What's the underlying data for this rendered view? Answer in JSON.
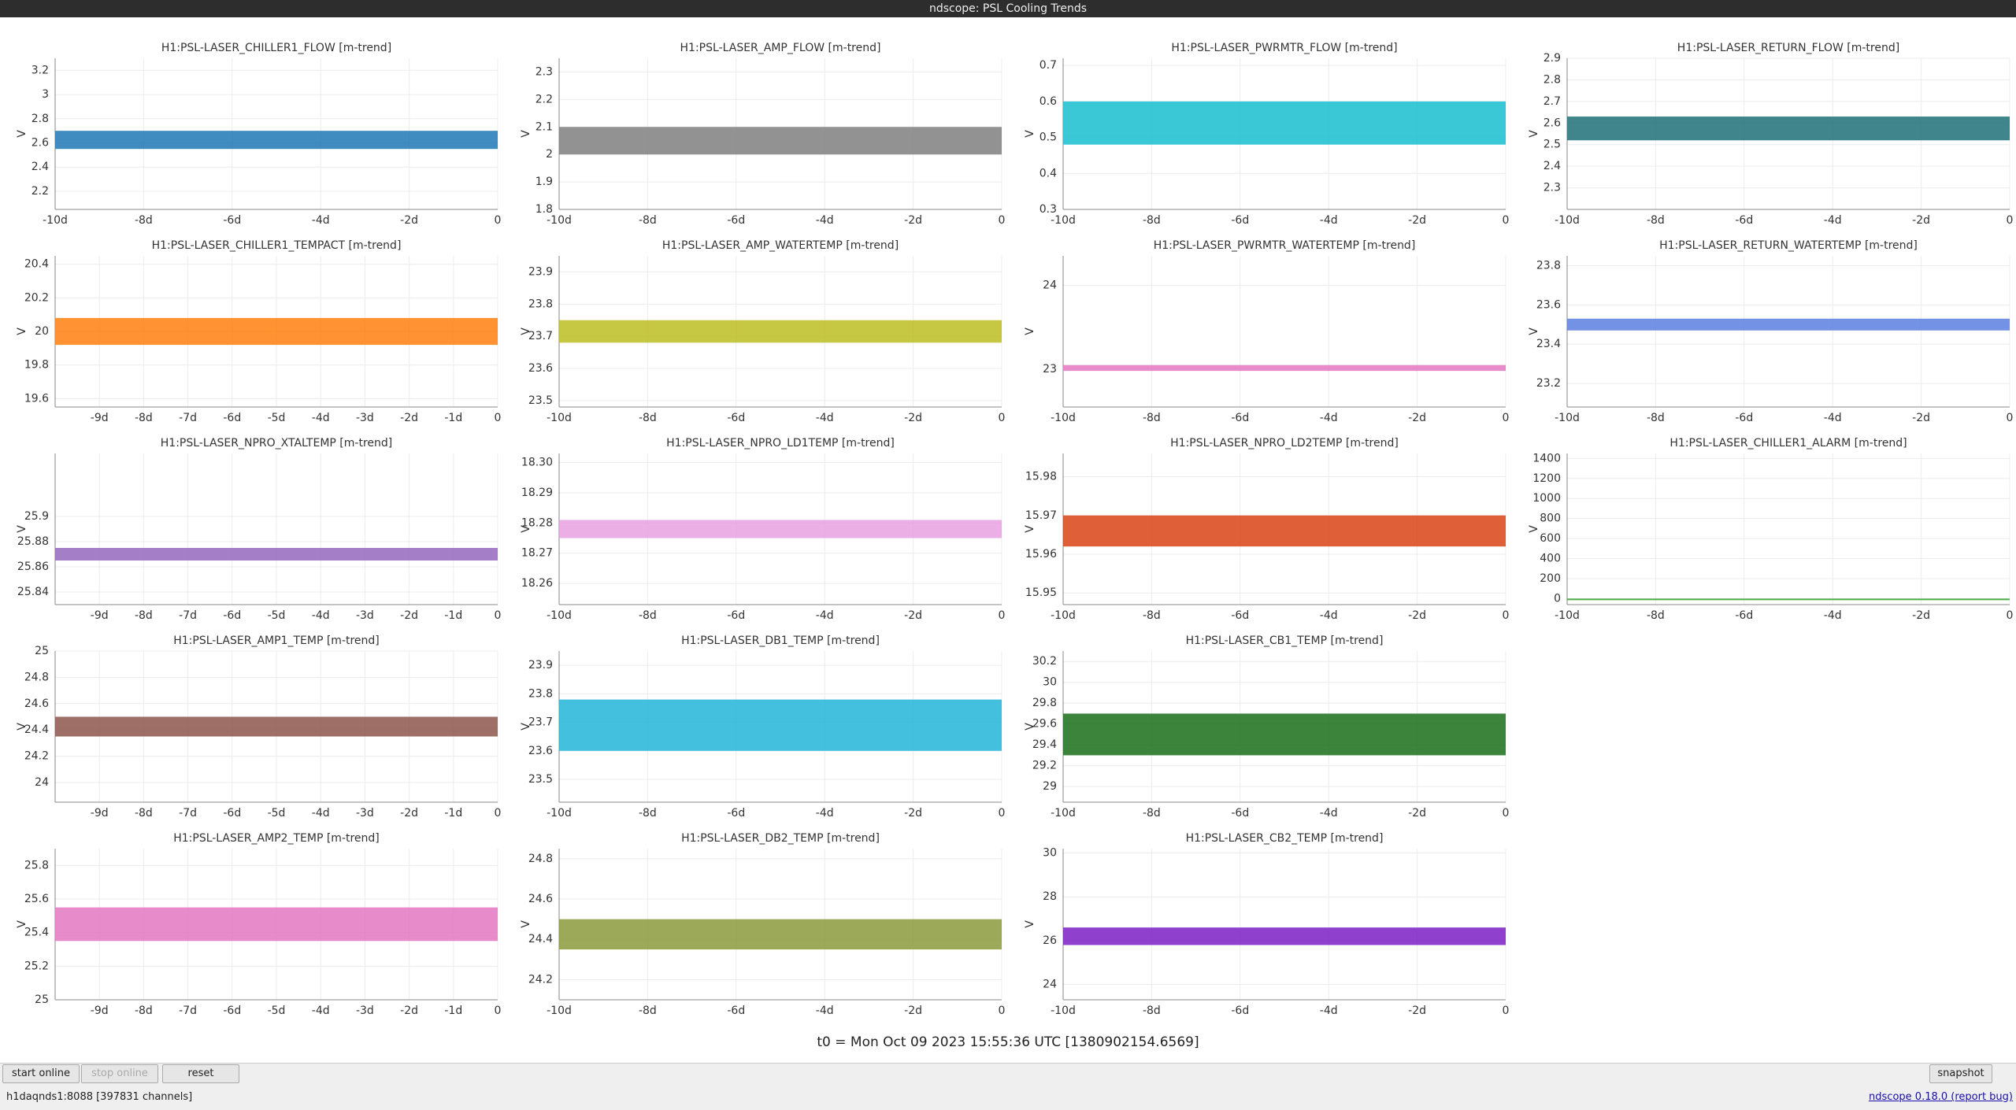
{
  "window_title": "ndscope: PSL Cooling Trends",
  "panels": [
    {
      "title": "H1:PSL-LASER_CHILLER1_FLOW [m-trend]",
      "ylabel": "V",
      "color": "#1f77b4",
      "band": [
        2.55,
        2.7
      ],
      "ylim": [
        2.05,
        3.3
      ],
      "yticks": [
        2.2,
        2.4,
        2.6,
        2.8,
        3,
        3.2
      ],
      "xlim": [
        -10,
        0
      ],
      "xticks": [
        {
          "value": -10,
          "label": "-10d"
        },
        {
          "value": -8,
          "label": "-8d"
        },
        {
          "value": -6,
          "label": "-6d"
        },
        {
          "value": -4,
          "label": "-4d"
        },
        {
          "value": -2,
          "label": "-2d"
        },
        0
      ]
    },
    {
      "title": "H1:PSL-LASER_AMP_FLOW [m-trend]",
      "ylabel": "V",
      "color": "#7f7f7f",
      "band": [
        2.0,
        2.1
      ],
      "ylim": [
        1.8,
        2.35
      ],
      "yticks": [
        1.8,
        1.9,
        2,
        2.1,
        2.2,
        2.3
      ],
      "xlim": [
        -10,
        0
      ],
      "xticks": [
        {
          "value": -10,
          "label": "-10d"
        },
        {
          "value": -8,
          "label": "-8d"
        },
        {
          "value": -6,
          "label": "-6d"
        },
        {
          "value": -4,
          "label": "-4d"
        },
        {
          "value": -2,
          "label": "-2d"
        },
        0
      ]
    },
    {
      "title": "H1:PSL-LASER_PWRMTR_FLOW [m-trend]",
      "ylabel": "V",
      "color": "#17becf",
      "band": [
        0.48,
        0.6
      ],
      "ylim": [
        0.3,
        0.72
      ],
      "yticks": [
        0.3,
        0.4,
        0.5,
        0.6,
        0.7
      ],
      "xlim": [
        -10,
        0
      ],
      "xticks": [
        {
          "value": -10,
          "label": "-10d"
        },
        {
          "value": -8,
          "label": "-8d"
        },
        {
          "value": -6,
          "label": "-6d"
        },
        {
          "value": -4,
          "label": "-4d"
        },
        {
          "value": -2,
          "label": "-2d"
        },
        0
      ]
    },
    {
      "title": "H1:PSL-LASER_RETURN_FLOW [m-trend]",
      "ylabel": "V",
      "color": "#1f6f78",
      "band": [
        2.52,
        2.63
      ],
      "ylim": [
        2.2,
        2.9
      ],
      "yticks": [
        2.3,
        2.4,
        2.5,
        2.6,
        2.7,
        2.8,
        2.9
      ],
      "xlim": [
        -10,
        0
      ],
      "xticks": [
        {
          "value": -10,
          "label": "-10d"
        },
        {
          "value": -8,
          "label": "-8d"
        },
        {
          "value": -6,
          "label": "-6d"
        },
        {
          "value": -4,
          "label": "-4d"
        },
        {
          "value": -2,
          "label": "-2d"
        },
        0
      ]
    },
    {
      "title": "H1:PSL-LASER_CHILLER1_TEMPACT [m-trend]",
      "ylabel": "V",
      "color": "#ff7f0e",
      "band": [
        19.92,
        20.08
      ],
      "ylim": [
        19.55,
        20.45
      ],
      "yticks": [
        19.6,
        19.8,
        20,
        20.2,
        20.4
      ],
      "xlim": [
        -10,
        0
      ],
      "xticks": [
        {
          "value": -9,
          "label": "-9d"
        },
        {
          "value": -8,
          "label": "-8d"
        },
        {
          "value": -7,
          "label": "-7d"
        },
        {
          "value": -6,
          "label": "-6d"
        },
        {
          "value": -5,
          "label": "-5d"
        },
        {
          "value": -4,
          "label": "-4d"
        },
        {
          "value": -3,
          "label": "-3d"
        },
        {
          "value": -2,
          "label": "-2d"
        },
        {
          "value": -1,
          "label": "-1d"
        },
        0
      ]
    },
    {
      "title": "H1:PSL-LASER_AMP_WATERTEMP [m-trend]",
      "ylabel": "V",
      "color": "#bcbd22",
      "band": [
        23.68,
        23.75
      ],
      "ylim": [
        23.48,
        23.95
      ],
      "yticks": [
        23.5,
        23.6,
        23.7,
        23.8,
        23.9
      ],
      "xlim": [
        -10,
        0
      ],
      "xticks": [
        {
          "value": -10,
          "label": "-10d"
        },
        {
          "value": -8,
          "label": "-8d"
        },
        {
          "value": -6,
          "label": "-6d"
        },
        {
          "value": -4,
          "label": "-4d"
        },
        {
          "value": -2,
          "label": "-2d"
        },
        0
      ]
    },
    {
      "title": "H1:PSL-LASER_PWRMTR_WATERTEMP [m-trend]",
      "ylabel": "V",
      "color": "#e377c2",
      "band": [
        22.98,
        23.05
      ],
      "ylim": [
        22.55,
        24.35
      ],
      "yticks": [
        23,
        24
      ],
      "xlim": [
        -10,
        0
      ],
      "xticks": [
        {
          "value": -10,
          "label": "-10d"
        },
        {
          "value": -8,
          "label": "-8d"
        },
        {
          "value": -6,
          "label": "-6d"
        },
        {
          "value": -4,
          "label": "-4d"
        },
        {
          "value": -2,
          "label": "-2d"
        },
        0
      ]
    },
    {
      "title": "H1:PSL-LASER_RETURN_WATERTEMP [m-trend]",
      "ylabel": "V",
      "color": "#5b7fe0",
      "band": [
        23.47,
        23.53
      ],
      "ylim": [
        23.08,
        23.85
      ],
      "yticks": [
        23.2,
        23.4,
        23.6,
        23.8
      ],
      "xlim": [
        -10,
        0
      ],
      "xticks": [
        {
          "value": -10,
          "label": "-10d"
        },
        {
          "value": -8,
          "label": "-8d"
        },
        {
          "value": -6,
          "label": "-6d"
        },
        {
          "value": -4,
          "label": "-4d"
        },
        {
          "value": -2,
          "label": "-2d"
        },
        0
      ]
    },
    {
      "title": "H1:PSL-LASER_NPRO_XTALTEMP [m-trend]",
      "ylabel": "V",
      "color": "#9467bd",
      "band": [
        25.865,
        25.875
      ],
      "ylim": [
        25.83,
        25.95
      ],
      "yticks": [
        25.84,
        25.86,
        25.88,
        25.9
      ],
      "xlim": [
        -10,
        0
      ],
      "xticks": [
        {
          "value": -9,
          "label": "-9d"
        },
        {
          "value": -8,
          "label": "-8d"
        },
        {
          "value": -7,
          "label": "-7d"
        },
        {
          "value": -6,
          "label": "-6d"
        },
        {
          "value": -5,
          "label": "-5d"
        },
        {
          "value": -4,
          "label": "-4d"
        },
        {
          "value": -3,
          "label": "-3d"
        },
        {
          "value": -2,
          "label": "-2d"
        },
        {
          "value": -1,
          "label": "-1d"
        },
        0
      ]
    },
    {
      "title": "H1:PSL-LASER_NPRO_LD1TEMP [m-trend]",
      "ylabel": "V",
      "color": "#e8a0e0",
      "band": [
        18.275,
        18.281
      ],
      "ylim": [
        18.253,
        18.303
      ],
      "yticks": [
        18.26,
        18.27,
        18.28,
        18.29,
        {
          "value": 18.3,
          "label": "18.30"
        }
      ],
      "xlim": [
        -10,
        0
      ],
      "xticks": [
        {
          "value": -10,
          "label": "-10d"
        },
        {
          "value": -8,
          "label": "-8d"
        },
        {
          "value": -6,
          "label": "-6d"
        },
        {
          "value": -4,
          "label": "-4d"
        },
        {
          "value": -2,
          "label": "-2d"
        },
        0
      ]
    },
    {
      "title": "H1:PSL-LASER_NPRO_LD2TEMP [m-trend]",
      "ylabel": "V",
      "color": "#d84315",
      "band": [
        15.962,
        15.97
      ],
      "ylim": [
        15.947,
        15.986
      ],
      "yticks": [
        15.95,
        15.96,
        15.97,
        15.98
      ],
      "xlim": [
        -10,
        0
      ],
      "xticks": [
        {
          "value": -10,
          "label": "-10d"
        },
        {
          "value": -8,
          "label": "-8d"
        },
        {
          "value": -6,
          "label": "-6d"
        },
        {
          "value": -4,
          "label": "-4d"
        },
        {
          "value": -2,
          "label": "-2d"
        },
        0
      ]
    },
    {
      "title": "H1:PSL-LASER_CHILLER1_ALARM [m-trend]",
      "ylabel": "V",
      "color": "#2ca02c",
      "band": [
        0,
        0
      ],
      "ylim": [
        -60,
        1450
      ],
      "yticks": [
        0,
        200,
        400,
        600,
        800,
        1000,
        1200,
        1400
      ],
      "xlim": [
        -10,
        0
      ],
      "xticks": [
        {
          "value": -10,
          "label": "-10d"
        },
        {
          "value": -8,
          "label": "-8d"
        },
        {
          "value": -6,
          "label": "-6d"
        },
        {
          "value": -4,
          "label": "-4d"
        },
        {
          "value": -2,
          "label": "-2d"
        },
        0
      ]
    },
    {
      "title": "H1:PSL-LASER_AMP1_TEMP [m-trend]",
      "ylabel": "V",
      "color": "#8c564b",
      "band": [
        24.35,
        24.5
      ],
      "ylim": [
        23.85,
        25.0
      ],
      "yticks": [
        24,
        24.2,
        24.4,
        24.6,
        24.8,
        25
      ],
      "xlim": [
        -10,
        0
      ],
      "xticks": [
        {
          "value": -9,
          "label": "-9d"
        },
        {
          "value": -8,
          "label": "-8d"
        },
        {
          "value": -7,
          "label": "-7d"
        },
        {
          "value": -6,
          "label": "-6d"
        },
        {
          "value": -5,
          "label": "-5d"
        },
        {
          "value": -4,
          "label": "-4d"
        },
        {
          "value": -3,
          "label": "-3d"
        },
        {
          "value": -2,
          "label": "-2d"
        },
        {
          "value": -1,
          "label": "-1d"
        },
        0
      ]
    },
    {
      "title": "H1:PSL-LASER_DB1_TEMP [m-trend]",
      "ylabel": "V",
      "color": "#22b5d8",
      "band": [
        23.6,
        23.78
      ],
      "ylim": [
        23.42,
        23.95
      ],
      "yticks": [
        23.5,
        23.6,
        23.7,
        23.8,
        23.9
      ],
      "xlim": [
        -10,
        0
      ],
      "xticks": [
        {
          "value": -10,
          "label": "-10d"
        },
        {
          "value": -8,
          "label": "-8d"
        },
        {
          "value": -6,
          "label": "-6d"
        },
        {
          "value": -4,
          "label": "-4d"
        },
        {
          "value": -2,
          "label": "-2d"
        },
        0
      ]
    },
    {
      "title": "H1:PSL-LASER_CB1_TEMP [m-trend]",
      "ylabel": "V",
      "color": "#1a6e1a",
      "band": [
        29.3,
        29.7
      ],
      "ylim": [
        28.85,
        30.3
      ],
      "yticks": [
        29,
        29.2,
        29.4,
        29.6,
        29.8,
        30,
        30.2
      ],
      "xlim": [
        -10,
        0
      ],
      "xticks": [
        {
          "value": -10,
          "label": "-10d"
        },
        {
          "value": -8,
          "label": "-8d"
        },
        {
          "value": -6,
          "label": "-6d"
        },
        {
          "value": -4,
          "label": "-4d"
        },
        {
          "value": -2,
          "label": "-2d"
        },
        0
      ]
    },
    {
      "title": "H1:PSL-LASER_AMP2_TEMP [m-trend]",
      "ylabel": "V",
      "color": "#e377c2",
      "band": [
        25.35,
        25.55
      ],
      "ylim": [
        25.0,
        25.9
      ],
      "yticks": [
        25,
        25.2,
        25.4,
        25.6,
        25.8
      ],
      "xlim": [
        -10,
        0
      ],
      "xticks": [
        {
          "value": -9,
          "label": "-9d"
        },
        {
          "value": -8,
          "label": "-8d"
        },
        {
          "value": -7,
          "label": "-7d"
        },
        {
          "value": -6,
          "label": "-6d"
        },
        {
          "value": -5,
          "label": "-5d"
        },
        {
          "value": -4,
          "label": "-4d"
        },
        {
          "value": -3,
          "label": "-3d"
        },
        {
          "value": -2,
          "label": "-2d"
        },
        {
          "value": -1,
          "label": "-1d"
        },
        0
      ]
    },
    {
      "title": "H1:PSL-LASER_DB2_TEMP [m-trend]",
      "ylabel": "V",
      "color": "#8a9a3b",
      "band": [
        24.35,
        24.5
      ],
      "ylim": [
        24.1,
        24.85
      ],
      "yticks": [
        24.2,
        24.4,
        24.6,
        24.8
      ],
      "xlim": [
        -10,
        0
      ],
      "xticks": [
        {
          "value": -10,
          "label": "-10d"
        },
        {
          "value": -8,
          "label": "-8d"
        },
        {
          "value": -6,
          "label": "-6d"
        },
        {
          "value": -4,
          "label": "-4d"
        },
        {
          "value": -2,
          "label": "-2d"
        },
        0
      ]
    },
    {
      "title": "H1:PSL-LASER_CB2_TEMP [m-trend]",
      "ylabel": "V",
      "color": "#7b1fc4",
      "band": [
        25.8,
        26.6
      ],
      "ylim": [
        23.3,
        30.2
      ],
      "yticks": [
        24,
        26,
        28,
        30
      ],
      "xlim": [
        -10,
        0
      ],
      "xticks": [
        {
          "value": -10,
          "label": "-10d"
        },
        {
          "value": -8,
          "label": "-8d"
        },
        {
          "value": -6,
          "label": "-6d"
        },
        {
          "value": -4,
          "label": "-4d"
        },
        {
          "value": -2,
          "label": "-2d"
        },
        0
      ]
    }
  ],
  "t0": "t0 = Mon Oct 09 2023 15:55:36 UTC [1380902154.6569]",
  "buttons": [
    "start online",
    "stop online",
    "reset",
    "snapshot"
  ],
  "status": "h1daqnds1:8088  [397831 channels]",
  "version": "ndscope 0.18.0 (report bug)"
}
